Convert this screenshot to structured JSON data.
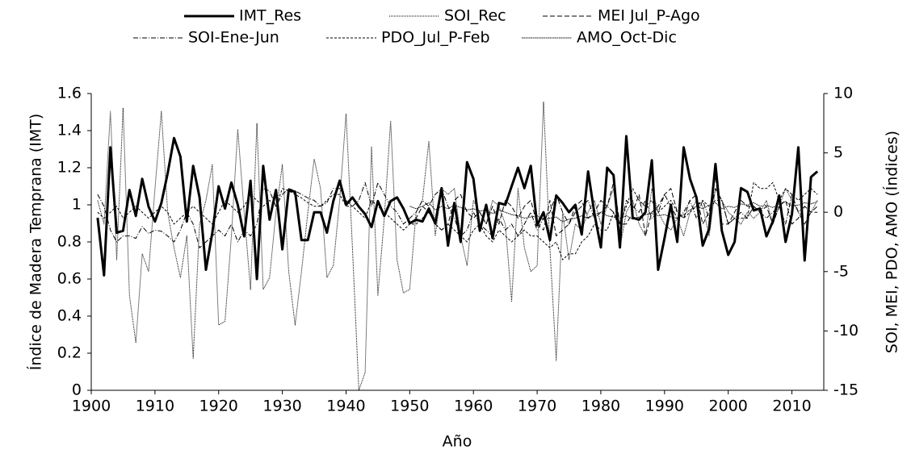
{
  "chart_data": {
    "type": "line",
    "y_label": "Índice de  Madera Temprana (IMT)",
    "y2_label": "SOI, MEI, PDO, AMO (Índices)",
    "x_label": "Año",
    "xlim": [
      1900,
      2015
    ],
    "xticks": [
      1900,
      1910,
      1920,
      1930,
      1940,
      1950,
      1960,
      1970,
      1980,
      1990,
      2000,
      2010
    ],
    "ylim": [
      0,
      1.6
    ],
    "yticks": [
      0,
      0.2,
      0.4,
      0.6,
      0.8,
      1,
      1.2,
      1.4,
      1.6
    ],
    "y2lim": [
      -15,
      10
    ],
    "y2ticks": [
      -15,
      -10,
      -5,
      0,
      5,
      10
    ],
    "legend": "top",
    "x": [
      1901,
      1902,
      1903,
      1904,
      1905,
      1906,
      1907,
      1908,
      1909,
      1910,
      1911,
      1912,
      1913,
      1914,
      1915,
      1916,
      1917,
      1918,
      1919,
      1920,
      1921,
      1922,
      1923,
      1924,
      1925,
      1926,
      1927,
      1928,
      1929,
      1930,
      1931,
      1932,
      1933,
      1934,
      1935,
      1936,
      1937,
      1938,
      1939,
      1940,
      1941,
      1942,
      1943,
      1944,
      1945,
      1946,
      1947,
      1948,
      1949,
      1950,
      1951,
      1952,
      1953,
      1954,
      1955,
      1956,
      1957,
      1958,
      1959,
      1960,
      1961,
      1962,
      1963,
      1964,
      1965,
      1966,
      1967,
      1968,
      1969,
      1970,
      1971,
      1972,
      1973,
      1974,
      1975,
      1976,
      1977,
      1978,
      1979,
      1980,
      1981,
      1982,
      1983,
      1984,
      1985,
      1986,
      1987,
      1988,
      1989,
      1990,
      1991,
      1992,
      1993,
      1994,
      1995,
      1996,
      1997,
      1998,
      1999,
      2000,
      2001,
      2002,
      2003,
      2004,
      2005,
      2006,
      2007,
      2008,
      2009,
      2010,
      2011,
      2012,
      2013,
      2014
    ],
    "series": [
      {
        "name": "IMT_Res",
        "color": "#000000",
        "width": 3,
        "dash": "none",
        "axis": "y",
        "values": [
          0.93,
          0.62,
          1.31,
          0.85,
          0.86,
          1.08,
          0.94,
          1.14,
          0.99,
          0.91,
          1.01,
          1.17,
          1.36,
          1.26,
          0.91,
          1.21,
          1.04,
          0.65,
          0.85,
          1.1,
          0.98,
          1.12,
          1.0,
          0.83,
          1.13,
          0.6,
          1.21,
          0.92,
          1.08,
          0.76,
          1.08,
          1.07,
          0.81,
          0.81,
          0.96,
          0.96,
          0.85,
          1.02,
          1.13,
          1.0,
          1.04,
          0.99,
          0.95,
          0.88,
          1.02,
          0.94,
          1.02,
          1.04,
          0.98,
          0.9,
          0.92,
          0.91,
          0.98,
          0.9,
          1.09,
          0.78,
          1.01,
          0.8,
          1.23,
          1.14,
          0.86,
          1.0,
          0.82,
          1.01,
          1.0,
          1.1,
          1.2,
          1.09,
          1.21,
          0.89,
          0.96,
          0.81,
          1.05,
          1.01,
          0.96,
          1.0,
          0.84,
          1.18,
          0.95,
          0.77,
          1.2,
          1.16,
          0.77,
          1.37,
          0.93,
          0.92,
          0.96,
          1.24,
          0.65,
          0.82,
          1.0,
          0.8,
          1.31,
          1.14,
          1.04,
          0.78,
          0.87,
          1.22,
          0.86,
          0.73,
          0.8,
          1.09,
          1.07,
          0.97,
          0.98,
          0.83,
          0.91,
          1.05,
          0.8,
          0.95,
          1.31,
          0.7,
          1.15,
          1.18
        ]
      },
      {
        "name": "SOI_Rec",
        "color": "#000000",
        "width": 1,
        "dash": "1 1",
        "axis": "y2",
        "values": [
          1,
          -1,
          8.5,
          -4,
          8.8,
          -7,
          -11,
          -3.5,
          -5,
          2,
          8.5,
          0,
          -3,
          -5.5,
          -2,
          -12.3,
          -1,
          1,
          4,
          -9.5,
          -9.2,
          -2,
          7,
          0,
          -6.5,
          7.5,
          -6.5,
          -5.5,
          0,
          4,
          -5,
          -9.5,
          -5,
          0,
          4.5,
          2,
          -5.5,
          -4.5,
          1,
          8.3,
          -3,
          -15,
          -13.5,
          5.5,
          -7,
          -0.5,
          7.7,
          -4,
          -6.8,
          -6.5,
          0,
          1,
          6,
          -2,
          2,
          1.5,
          2,
          -2,
          -4.5,
          1,
          0,
          -1,
          1,
          0.5,
          -1,
          -7.5,
          2,
          -3,
          -5,
          -4.5,
          9.3,
          -3,
          -12.5,
          0,
          -4,
          -1,
          -1.5,
          0,
          1,
          -1,
          0.5,
          2,
          -3,
          0,
          1,
          -1,
          -2,
          2,
          0,
          -1,
          -1.5,
          -0.5,
          -2,
          0,
          1,
          0.5,
          -2,
          2,
          1,
          0,
          -0.5,
          -1,
          0,
          -0.5,
          0,
          1,
          -1,
          0.5,
          2,
          1,
          0,
          0.5,
          0,
          1
        ]
      },
      {
        "name": "MEI Jul_P-Ago",
        "color": "#000000",
        "width": 1,
        "dash": "6 3",
        "axis": "y2",
        "values": [
          null,
          null,
          null,
          null,
          null,
          null,
          null,
          null,
          null,
          null,
          null,
          null,
          null,
          null,
          null,
          null,
          null,
          null,
          null,
          null,
          null,
          null,
          null,
          null,
          null,
          null,
          null,
          null,
          null,
          null,
          null,
          null,
          null,
          null,
          null,
          null,
          null,
          null,
          null,
          null,
          null,
          null,
          null,
          null,
          null,
          null,
          null,
          null,
          null,
          -1,
          -0.5,
          0.5,
          0,
          -1,
          -1.5,
          -1,
          1,
          1.5,
          0,
          -0.5,
          0,
          -1,
          0.5,
          -1,
          1,
          0.5,
          -0.5,
          0.5,
          1,
          -1,
          -1.5,
          1,
          -2,
          -1.5,
          -1,
          0.5,
          1,
          -0.5,
          0,
          1,
          0.5,
          2.5,
          -1,
          -1,
          0,
          1.5,
          -2,
          0,
          0.5,
          1.5,
          2,
          0,
          -0.5,
          1,
          1.5,
          -1,
          0,
          3,
          -1,
          -1,
          0,
          1,
          0.5,
          0.5,
          0,
          0.5,
          -1,
          0.5,
          1,
          -1,
          -0.5,
          0.5,
          0,
          0
        ]
      },
      {
        "name": "SOI-Ene-Jun",
        "color": "#000000",
        "width": 1,
        "dash": "6 2 1 2",
        "axis": "y2",
        "values": [
          1.5,
          0.5,
          -1.5,
          -2.5,
          -2,
          -2,
          -2.2,
          -1.2,
          -1.8,
          -1.5,
          -1.6,
          -2,
          -2.5,
          -1.5,
          0,
          -1,
          -3,
          -2.5,
          -2,
          -1.5,
          -2,
          -1,
          -2.5,
          -1.5,
          -2,
          -1,
          2,
          1.8,
          0.5,
          1.5,
          2,
          1.8,
          1.5,
          1.2,
          1,
          0.5,
          0.8,
          2,
          2,
          1,
          0.5,
          1,
          2.5,
          0.5,
          2.5,
          1.5,
          0.5,
          0,
          -1,
          -0.5,
          0,
          1,
          0.5,
          1.5,
          2,
          0.5,
          -0.5,
          -2,
          -1.5,
          0,
          -1,
          -1.5,
          -2,
          -0.5,
          -1.5,
          -1,
          -2,
          -1,
          0,
          -1.5,
          -0.5,
          0,
          1.5,
          0,
          -1,
          0,
          0.5,
          1,
          -0.5,
          0,
          0.5,
          0,
          -1.5,
          1,
          0.5,
          0,
          1,
          -0.5,
          0,
          1.5,
          0.5,
          -0.5,
          0,
          1,
          -0.5,
          1,
          -0.5,
          2,
          1,
          -1,
          -0.5,
          0,
          -0.5,
          0.5,
          0,
          -0.5,
          0,
          0.5,
          -1,
          1.5,
          0,
          -1,
          0,
          0.5
        ]
      },
      {
        "name": "PDO_Jul_P-Feb",
        "color": "#000000",
        "width": 1,
        "dash": "3 2",
        "axis": "y2",
        "values": [
          0,
          -0.5,
          0,
          0.5,
          -0.5,
          0,
          0.5,
          0,
          -0.5,
          0,
          0.5,
          0,
          -1,
          -0.5,
          0,
          0.5,
          0,
          -0.5,
          -1,
          0,
          1,
          0.5,
          0,
          0.5,
          1.5,
          1,
          0.5,
          1,
          0.5,
          2,
          1.8,
          1.5,
          1.2,
          0.8,
          0.5,
          0.5,
          1,
          1.5,
          1.5,
          0.5,
          0.5,
          0,
          -0.5,
          1,
          0.5,
          0,
          -0.5,
          -1,
          -1.5,
          -1,
          -1,
          -0.5,
          0,
          -1,
          -1.5,
          -1,
          -1.5,
          -2,
          -2.5,
          -1.5,
          -1,
          -2,
          -2.5,
          -1.5,
          -2,
          -2.5,
          -2,
          -1.5,
          -2,
          -2,
          -2.5,
          -3,
          -2.5,
          -4,
          -3.5,
          -3.5,
          -2.5,
          -2,
          -1,
          -1.5,
          -1.5,
          0,
          -1,
          0.5,
          2,
          1,
          0.5,
          1,
          0,
          0.5,
          1,
          0,
          -0.5,
          0,
          0.5,
          1,
          0.5,
          1,
          1,
          -1,
          -0.5,
          -0.5,
          -0.5,
          2.5,
          2,
          2,
          2.5,
          1,
          2,
          1.5,
          1,
          1.5,
          2,
          1.5
        ]
      },
      {
        "name": "AMO_Oct-Dic",
        "color": "#000000",
        "width": 1,
        "dash": "1.5 0.8",
        "axis": "y2",
        "values": [
          null,
          null,
          null,
          null,
          null,
          null,
          null,
          null,
          null,
          null,
          null,
          null,
          null,
          null,
          null,
          null,
          null,
          null,
          null,
          null,
          null,
          null,
          null,
          null,
          null,
          null,
          null,
          null,
          null,
          null,
          null,
          null,
          null,
          null,
          null,
          null,
          null,
          null,
          null,
          null,
          null,
          null,
          null,
          null,
          null,
          null,
          null,
          null,
          null,
          0.5,
          0.3,
          0.5,
          0.8,
          0.2,
          0.5,
          0.3,
          0.6,
          0.4,
          0.2,
          0.3,
          0.1,
          0.2,
          -0.1,
          0.2,
          0,
          -0.2,
          -0.3,
          -0.5,
          -0.4,
          -0.3,
          -0.6,
          -0.5,
          -0.4,
          -0.8,
          -0.6,
          -0.5,
          -0.3,
          -0.5,
          -0.2,
          0,
          -0.3,
          -0.4,
          -0.5,
          -0.3,
          -0.6,
          -0.4,
          -0.2,
          -0.1,
          -0.3,
          -0.2,
          -0.4,
          -0.5,
          -0.2,
          0.2,
          0.5,
          0.3,
          0.6,
          0.8,
          0.3,
          0.5,
          0.4,
          0.7,
          0.6,
          0.8,
          0.5,
          0.6,
          0.4,
          0.7,
          0.9,
          0.5,
          0.6,
          0.8,
          0.7,
          0.9
        ]
      }
    ]
  }
}
